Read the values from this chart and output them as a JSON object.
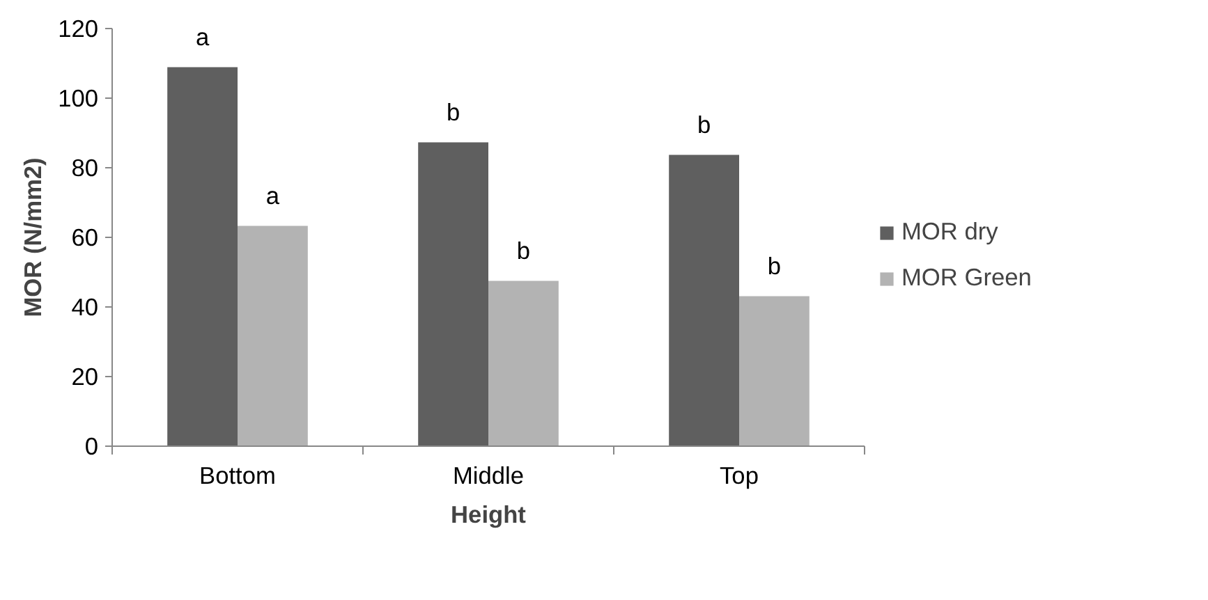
{
  "chart_data": {
    "type": "bar",
    "xlabel": "Height",
    "ylabel": "MOR (N/mm2)",
    "categories": [
      "Bottom",
      "Middle",
      "Top"
    ],
    "series": [
      {
        "name": "MOR dry",
        "color": "#5f5f5f",
        "values": [
          108.9,
          87.3,
          83.7
        ],
        "value_labels": [
          "a",
          "b",
          "b"
        ]
      },
      {
        "name": "MOR Green",
        "color": "#b3b3b3",
        "values": [
          63.3,
          47.5,
          43.1
        ],
        "value_labels": [
          "a",
          "b",
          "b"
        ]
      }
    ],
    "ylim": [
      0,
      120
    ],
    "yticks": [
      0,
      20,
      40,
      60,
      80,
      100,
      120
    ],
    "grid": false,
    "legend": "right"
  }
}
